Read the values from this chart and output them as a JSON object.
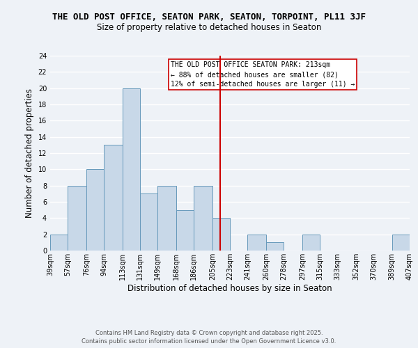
{
  "title": "THE OLD POST OFFICE, SEATON PARK, SEATON, TORPOINT, PL11 3JF",
  "subtitle": "Size of property relative to detached houses in Seaton",
  "xlabel": "Distribution of detached houses by size in Seaton",
  "ylabel": "Number of detached properties",
  "bin_labels": [
    "39sqm",
    "57sqm",
    "76sqm",
    "94sqm",
    "113sqm",
    "131sqm",
    "149sqm",
    "168sqm",
    "186sqm",
    "205sqm",
    "223sqm",
    "241sqm",
    "260sqm",
    "278sqm",
    "297sqm",
    "315sqm",
    "333sqm",
    "352sqm",
    "370sqm",
    "389sqm",
    "407sqm"
  ],
  "bin_edges": [
    39,
    57,
    76,
    94,
    113,
    131,
    149,
    168,
    186,
    205,
    223,
    241,
    260,
    278,
    297,
    315,
    333,
    352,
    370,
    389,
    407
  ],
  "bar_heights": [
    2,
    8,
    10,
    13,
    20,
    7,
    8,
    5,
    8,
    4,
    0,
    2,
    1,
    0,
    2,
    0,
    0,
    0,
    0,
    2
  ],
  "bar_color": "#c8d8e8",
  "bar_edge_color": "#6699bb",
  "vline_x": 213,
  "vline_color": "#cc0000",
  "ylim": [
    0,
    24
  ],
  "yticks": [
    0,
    2,
    4,
    6,
    8,
    10,
    12,
    14,
    16,
    18,
    20,
    22,
    24
  ],
  "annotation_lines": [
    "THE OLD POST OFFICE SEATON PARK: 213sqm",
    "← 88% of detached houses are smaller (82)",
    "12% of semi-detached houses are larger (11) →"
  ],
  "footer_lines": [
    "Contains HM Land Registry data © Crown copyright and database right 2025.",
    "Contains public sector information licensed under the Open Government Licence v3.0."
  ],
  "background_color": "#eef2f7",
  "grid_color": "#ffffff",
  "title_fontsize": 9,
  "subtitle_fontsize": 8.5,
  "axis_label_fontsize": 8.5,
  "tick_fontsize": 7,
  "annotation_fontsize": 7,
  "footer_fontsize": 6
}
